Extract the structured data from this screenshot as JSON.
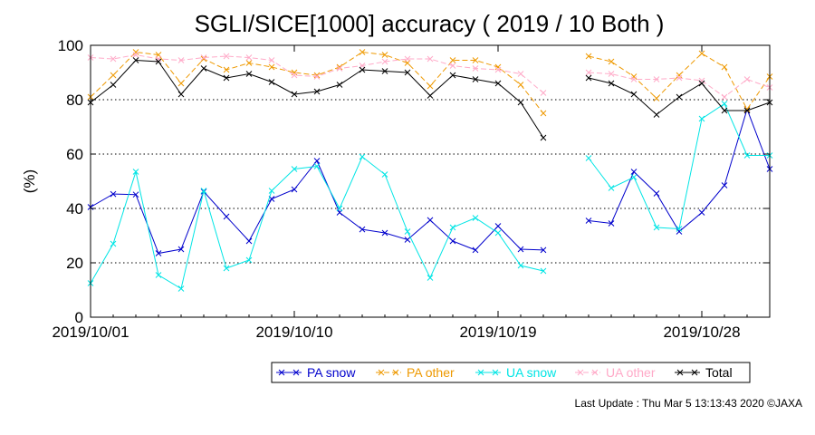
{
  "chart_data": {
    "type": "line",
    "title": "SGLI/SICE[1000] accuracy ( 2019 / 10 Both )",
    "ylabel": "(%)",
    "xlabel": "",
    "ylim": [
      0,
      100
    ],
    "yticks": [
      0,
      20,
      40,
      60,
      80,
      100
    ],
    "xlim": [
      "2019/10/01",
      "2019/10/31"
    ],
    "xticks": [
      "2019/10/01",
      "2019/10/10",
      "2019/10/19",
      "2019/10/28"
    ],
    "grid": "horizontal dotted at 20, 40, 60, 80",
    "legend_position": "bottom-right",
    "x": [
      "2019/10/01",
      "2019/10/02",
      "2019/10/03",
      "2019/10/04",
      "2019/10/05",
      "2019/10/06",
      "2019/10/07",
      "2019/10/08",
      "2019/10/09",
      "2019/10/10",
      "2019/10/11",
      "2019/10/12",
      "2019/10/13",
      "2019/10/14",
      "2019/10/15",
      "2019/10/16",
      "2019/10/17",
      "2019/10/18",
      "2019/10/19",
      "2019/10/20",
      "2019/10/21",
      "2019/10/22",
      "2019/10/23",
      "2019/10/24",
      "2019/10/25",
      "2019/10/26",
      "2019/10/27",
      "2019/10/28",
      "2019/10/29",
      "2019/10/30",
      "2019/10/31"
    ],
    "series": [
      {
        "name": "PA snow",
        "color": "#0000cc",
        "values": [
          40.5,
          45.3,
          45.1,
          23.5,
          25.0,
          46.2,
          37.0,
          28.0,
          43.5,
          47.0,
          57.5,
          38.5,
          32.3,
          31.0,
          28.5,
          35.7,
          28.0,
          24.7,
          33.5,
          25.0,
          24.7,
          null,
          35.5,
          34.5,
          53.5,
          45.5,
          31.5,
          38.5,
          48.5,
          76.5,
          54.5
        ]
      },
      {
        "name": "PA other",
        "color": "#ee9900",
        "values": [
          81.0,
          89.0,
          97.5,
          96.5,
          86.0,
          95.0,
          91.0,
          93.5,
          92.0,
          90.0,
          89.0,
          92.0,
          97.5,
          96.5,
          93.5,
          85.0,
          94.5,
          94.5,
          92.0,
          85.5,
          75.0,
          null,
          96.0,
          94.0,
          88.5,
          80.5,
          89.0,
          97.0,
          92.0,
          76.5,
          88.5
        ]
      },
      {
        "name": "UA snow",
        "color": "#00e5e5",
        "values": [
          12.5,
          27.0,
          53.5,
          15.5,
          10.5,
          46.5,
          18.0,
          21.0,
          46.5,
          54.5,
          55.5,
          40.0,
          59.0,
          52.5,
          31.5,
          14.5,
          33.0,
          36.5,
          31.0,
          19.0,
          17.0,
          null,
          58.5,
          47.5,
          51.5,
          33.0,
          32.5,
          73.0,
          78.5,
          59.5,
          59.5
        ]
      },
      {
        "name": "UA other",
        "color": "#ffaac8",
        "values": [
          95.5,
          95.0,
          96.5,
          95.0,
          94.5,
          95.5,
          96.0,
          95.5,
          94.5,
          89.0,
          88.5,
          91.5,
          92.5,
          94.0,
          95.0,
          95.0,
          92.5,
          91.5,
          91.0,
          89.5,
          82.5,
          null,
          90.0,
          89.5,
          87.5,
          87.5,
          88.0,
          87.0,
          81.0,
          87.5,
          84.5
        ]
      },
      {
        "name": "Total",
        "color": "#000000",
        "values": [
          79.0,
          85.5,
          94.5,
          94.0,
          82.0,
          91.5,
          88.0,
          89.5,
          86.5,
          82.0,
          83.0,
          85.5,
          91.0,
          90.5,
          90.0,
          81.5,
          89.0,
          87.5,
          86.0,
          79.0,
          66.0,
          null,
          88.0,
          86.0,
          82.0,
          74.5,
          81.0,
          86.0,
          76.0,
          76.0,
          79.0
        ]
      }
    ]
  },
  "footer": {
    "last_update": "Last Update : Thu Mar  5 13:13:43 2020  ©JAXA"
  }
}
